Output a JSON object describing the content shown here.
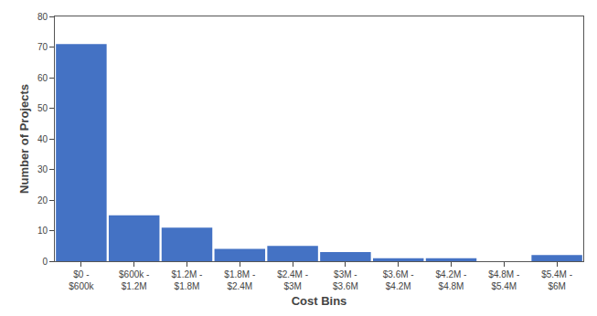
{
  "chart_data": {
    "type": "bar",
    "categories": [
      "$0 -\n$600k",
      "$600k -\n$1.2M",
      "$1.2M -\n$1.8M",
      "$1.8M -\n$2.4M",
      "$2.4M -\n$3M",
      "$3M -\n$3.6M",
      "$3.6M -\n$4.2M",
      "$4.2M -\n$4.8M",
      "$4.8M -\n$5.4M",
      "$5.4M -\n$6M"
    ],
    "values": [
      71,
      15,
      11,
      4,
      5,
      3,
      1,
      1,
      0,
      2
    ],
    "color": "#4472C4",
    "xlabel": "Cost Bins",
    "ylabel": "Number of Projects",
    "ylim": [
      0,
      80
    ],
    "yticks": [
      0,
      10,
      20,
      30,
      40,
      50,
      60,
      70,
      80
    ],
    "grid": false
  }
}
